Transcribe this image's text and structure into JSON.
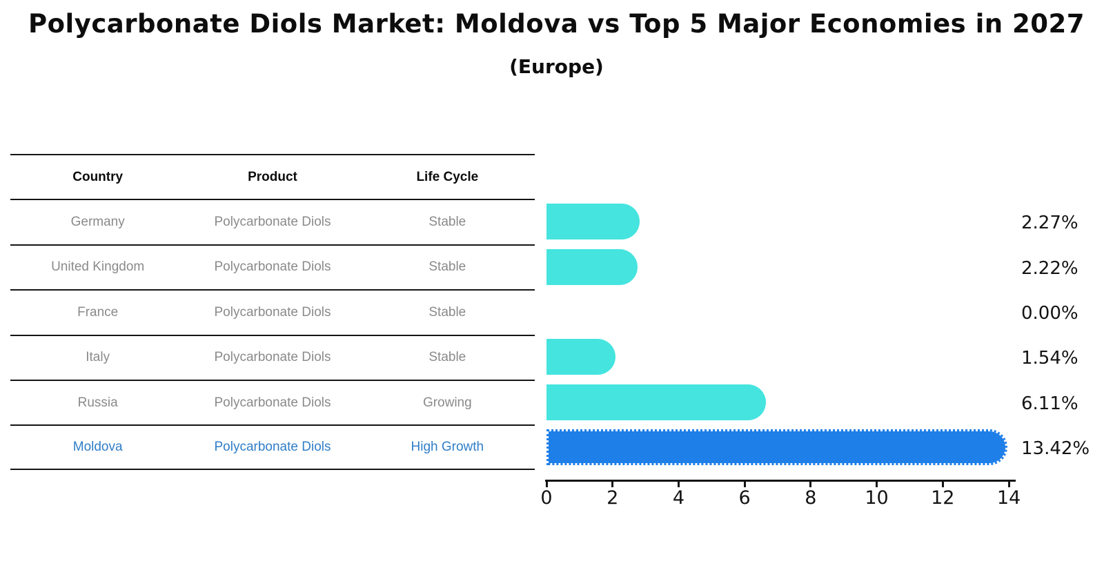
{
  "title": "Polycarbonate Diols Market: Moldova vs Top 5 Major Economies in 2027",
  "subtitle": "(Europe)",
  "colors": {
    "bar_default": "#45e4df",
    "bar_highlight": "#1f7fe8",
    "highlight_text": "#2f7ec7",
    "row_text": "#8a8a8a",
    "axis_and_lines": "#141414"
  },
  "table": {
    "headers": [
      "Country",
      "Product",
      "Life Cycle"
    ],
    "rows": [
      {
        "country": "Germany",
        "product": "Polycarbonate Diols",
        "life_cycle": "Stable",
        "highlight": false
      },
      {
        "country": "United Kingdom",
        "product": "Polycarbonate Diols",
        "life_cycle": "Stable",
        "highlight": false
      },
      {
        "country": "France",
        "product": "Polycarbonate Diols",
        "life_cycle": "Stable",
        "highlight": false
      },
      {
        "country": "Italy",
        "product": "Polycarbonate Diols",
        "life_cycle": "Stable",
        "highlight": false
      },
      {
        "country": "Russia",
        "product": "Polycarbonate Diols",
        "life_cycle": "Growing",
        "highlight": false
      },
      {
        "country": "Moldova",
        "product": "Polycarbonate Diols",
        "life_cycle": "High Growth",
        "highlight": true
      }
    ]
  },
  "chart_data": {
    "type": "bar",
    "orientation": "horizontal",
    "title": "Polycarbonate Diols Market: Moldova vs Top 5 Major Economies in 2027 (Europe)",
    "categories": [
      "Germany",
      "United Kingdom",
      "France",
      "Italy",
      "Russia",
      "Moldova"
    ],
    "values": [
      2.27,
      2.22,
      0.0,
      1.54,
      6.11,
      13.42
    ],
    "value_labels": [
      "2.27%",
      "2.22%",
      "0.00%",
      "1.54%",
      "6.11%",
      "13.42%"
    ],
    "highlight_index": 5,
    "x_ticks": [
      0,
      2,
      4,
      6,
      8,
      10,
      12,
      14
    ],
    "xlim": [
      0,
      14.1
    ],
    "xlabel": "",
    "ylabel": "",
    "grid": false,
    "legend": "none"
  }
}
